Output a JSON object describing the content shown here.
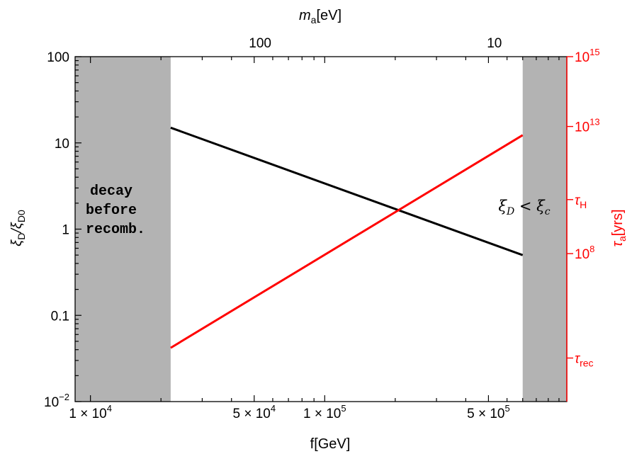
{
  "chart_data": {
    "type": "line",
    "x_axis_bottom": {
      "label": "f[GeV]",
      "scale": "log",
      "range": [
        8600,
        1080000
      ],
      "ticks": [
        {
          "value": 10000,
          "label": "1 × 10"
        },
        {
          "value": 50000,
          "label": "5 × 10"
        },
        {
          "value": 100000,
          "label": "1 × 10"
        },
        {
          "value": 500000,
          "label": "5 × 10"
        }
      ],
      "tick_exponents": [
        "4",
        "4",
        "5",
        "5"
      ]
    },
    "x_axis_top": {
      "label_main": "m",
      "label_sub": "a",
      "label_unit": "[eV]",
      "ticks": [
        {
          "f_value": 53000,
          "label": "100"
        },
        {
          "f_value": 530000,
          "label": "10"
        }
      ]
    },
    "y_axis_left": {
      "label_parts": [
        "ξ",
        "D",
        "/ξ",
        "D0"
      ],
      "scale": "log",
      "range": [
        0.01,
        100
      ],
      "ticks": [
        {
          "value": 100,
          "label": "100"
        },
        {
          "value": 10,
          "label": "10"
        },
        {
          "value": 1,
          "label": "1"
        },
        {
          "value": 0.1,
          "label": "0.1"
        },
        {
          "value": 0.01,
          "label": "10",
          "exponent": "−2"
        }
      ]
    },
    "y_axis_right": {
      "label_main": "τ",
      "label_sub": "a",
      "label_unit": "[yrs]",
      "color": "#ff0000",
      "ticks": [
        {
          "left_value": 100,
          "base": "10",
          "exponent": "15",
          "sub": ""
        },
        {
          "left_value": 15.5,
          "base": "10",
          "exponent": "13",
          "sub": ""
        },
        {
          "left_value": 2.2,
          "base": "τ",
          "exponent": "",
          "sub": "H"
        },
        {
          "left_value": 0.52,
          "base": "10",
          "exponent": "8",
          "sub": ""
        },
        {
          "left_value": 0.032,
          "base": "τ",
          "exponent": "",
          "sub": "rec"
        }
      ]
    },
    "shaded_regions": [
      {
        "from": 8600,
        "to": 22000,
        "label_lines": [
          "decay",
          "before",
          "recomb."
        ],
        "color": "#b3b3b3"
      },
      {
        "from": 700000,
        "to": 1080000,
        "label_parts": [
          "ξ",
          "D",
          " < ξ",
          "c"
        ],
        "color": "#b3b3b3"
      }
    ],
    "series": [
      {
        "color": "#000000",
        "points": [
          [
            22000,
            15
          ],
          [
            700000,
            0.5
          ]
        ]
      },
      {
        "color": "#ff0000",
        "points": [
          [
            22000,
            0.042
          ],
          [
            700000,
            12.3
          ]
        ]
      }
    ]
  }
}
